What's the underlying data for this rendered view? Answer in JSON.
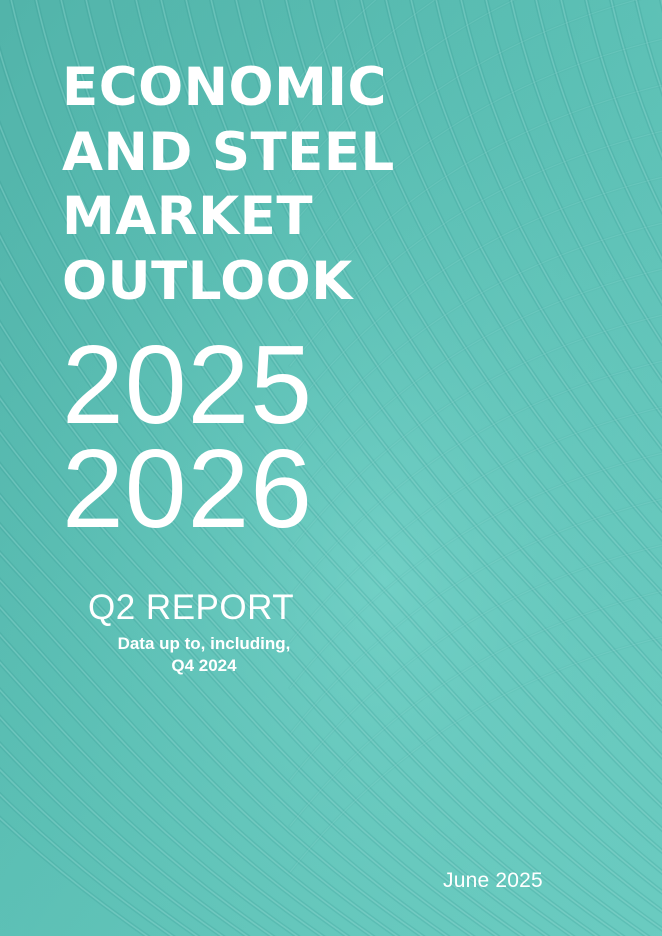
{
  "cover": {
    "title_lines": [
      "ECONOMIC",
      "AND STEEL",
      "MARKET",
      "OUTLOOK"
    ],
    "years": [
      "2025",
      "2026"
    ],
    "report_title": "Q2 REPORT",
    "data_note_lines": [
      "Data up to, including,",
      "Q4 2024"
    ],
    "date": "June 2025"
  },
  "colors": {
    "background": "#5dc1b6",
    "text": "#ffffff"
  }
}
